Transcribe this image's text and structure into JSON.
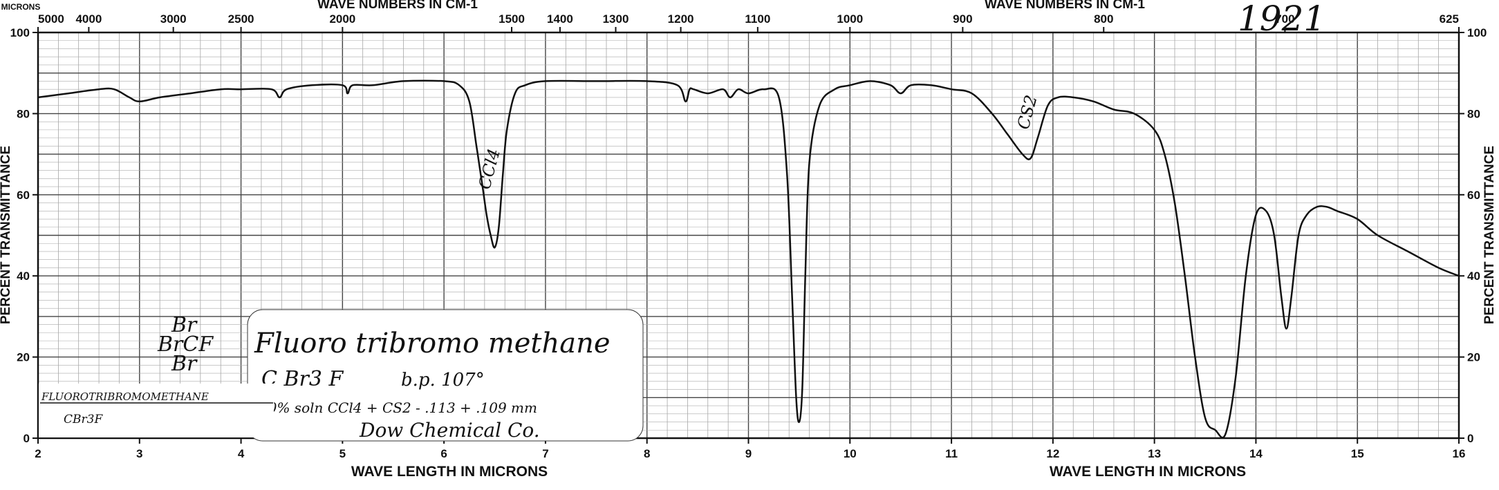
{
  "chart_data": {
    "type": "line",
    "catalog_number": "1921",
    "x_axis_bottom": {
      "label_left": "WAVE LENGTH IN MICRONS",
      "label_right": "WAVE LENGTH IN MICRONS",
      "range": [
        2,
        16
      ],
      "ticks": [
        2,
        3,
        4,
        5,
        6,
        7,
        8,
        9,
        10,
        11,
        12,
        13,
        14,
        15,
        16
      ]
    },
    "x_axis_top": {
      "label_left": "WAVE NUMBERS IN CM-1",
      "label_right": "WAVE NUMBERS IN CM-1",
      "corner_label": "MICRONS",
      "ticks": [
        {
          "label": "5000",
          "micron": 2.0
        },
        {
          "label": "4000",
          "micron": 2.5
        },
        {
          "label": "3000",
          "micron": 3.333
        },
        {
          "label": "2500",
          "micron": 4.0
        },
        {
          "label": "2000",
          "micron": 5.0
        },
        {
          "label": "1500",
          "micron": 6.667
        },
        {
          "label": "1400",
          "micron": 7.143
        },
        {
          "label": "1300",
          "micron": 7.692
        },
        {
          "label": "1200",
          "micron": 8.333
        },
        {
          "label": "1100",
          "micron": 9.091
        },
        {
          "label": "1000",
          "micron": 10.0
        },
        {
          "label": "900",
          "micron": 11.111
        },
        {
          "label": "800",
          "micron": 12.5
        },
        {
          "label": "700",
          "micron": 14.286
        },
        {
          "label": "625",
          "micron": 16.0
        }
      ]
    },
    "y_axis": {
      "label_left": "PERCENT TRANSMITTANCE",
      "label_right": "PERCENT TRANSMITTANCE",
      "range": [
        0,
        100
      ],
      "ticks": [
        0,
        20,
        40,
        60,
        80,
        100
      ]
    },
    "series": [
      {
        "x": [
          2.0,
          2.3,
          2.6,
          2.75,
          2.9,
          3.0,
          3.2,
          3.5,
          3.8,
          4.0,
          4.3,
          4.38,
          4.45,
          4.7,
          5.0,
          5.05,
          5.1,
          5.3,
          5.6,
          6.0,
          6.15,
          6.25,
          6.32,
          6.38,
          6.42,
          6.46,
          6.5,
          6.54,
          6.58,
          6.62,
          6.7,
          6.8,
          7.0,
          7.5,
          8.0,
          8.3,
          8.38,
          8.42,
          8.46,
          8.6,
          8.75,
          8.82,
          8.9,
          9.0,
          9.15,
          9.3,
          9.38,
          9.43,
          9.47,
          9.5,
          9.53,
          9.56,
          9.6,
          9.7,
          9.85,
          10.0,
          10.2,
          10.4,
          10.5,
          10.6,
          10.8,
          11.0,
          11.2,
          11.4,
          11.55,
          11.7,
          11.78,
          11.85,
          11.95,
          12.05,
          12.2,
          12.4,
          12.6,
          12.8,
          13.0,
          13.1,
          13.2,
          13.3,
          13.4,
          13.5,
          13.6,
          13.7,
          13.8,
          13.9,
          14.0,
          14.1,
          14.18,
          14.25,
          14.3,
          14.35,
          14.42,
          14.5,
          14.6,
          14.7,
          14.8,
          15.0,
          15.2,
          15.5,
          15.8,
          16.0
        ],
        "y": [
          84,
          85,
          86,
          86,
          84,
          83,
          84,
          85,
          86,
          86,
          86,
          84,
          86,
          87,
          87,
          85,
          87,
          87,
          88,
          88,
          87,
          83,
          72,
          62,
          55,
          50,
          47,
          52,
          65,
          76,
          85,
          87,
          88,
          88,
          88,
          87,
          83,
          86,
          86,
          85,
          86,
          84,
          86,
          85,
          86,
          84,
          65,
          35,
          10,
          4,
          12,
          40,
          68,
          82,
          86,
          87,
          88,
          87,
          85,
          87,
          87,
          86,
          85,
          80,
          75,
          70,
          69,
          74,
          82,
          84,
          84,
          83,
          81,
          80,
          76,
          70,
          58,
          40,
          20,
          5,
          2,
          1,
          15,
          40,
          55,
          56,
          50,
          35,
          27,
          35,
          50,
          55,
          57,
          57,
          56,
          54,
          50,
          46,
          42,
          40
        ]
      }
    ],
    "annotations": [
      {
        "text": "CCl4",
        "x": 6.5,
        "y": 66
      },
      {
        "text": "CS2",
        "x": 11.8,
        "y": 80
      }
    ],
    "handwritten_note": {
      "line1": "Fluoro tribromo methane",
      "line2a": "C Br3 F",
      "line2b": "b.p. 107°",
      "line3": "10% soln CCl4 + CS2 - .113 + .109 mm",
      "line4": "Dow Chemical Co."
    },
    "structure_formula": {
      "top": "Br",
      "middle": "BrCF",
      "bottom": "Br"
    },
    "corner_label": {
      "line1": "FLUOROTRIBROMOMETHANE",
      "line2": "CBr3F"
    },
    "grid": true
  }
}
